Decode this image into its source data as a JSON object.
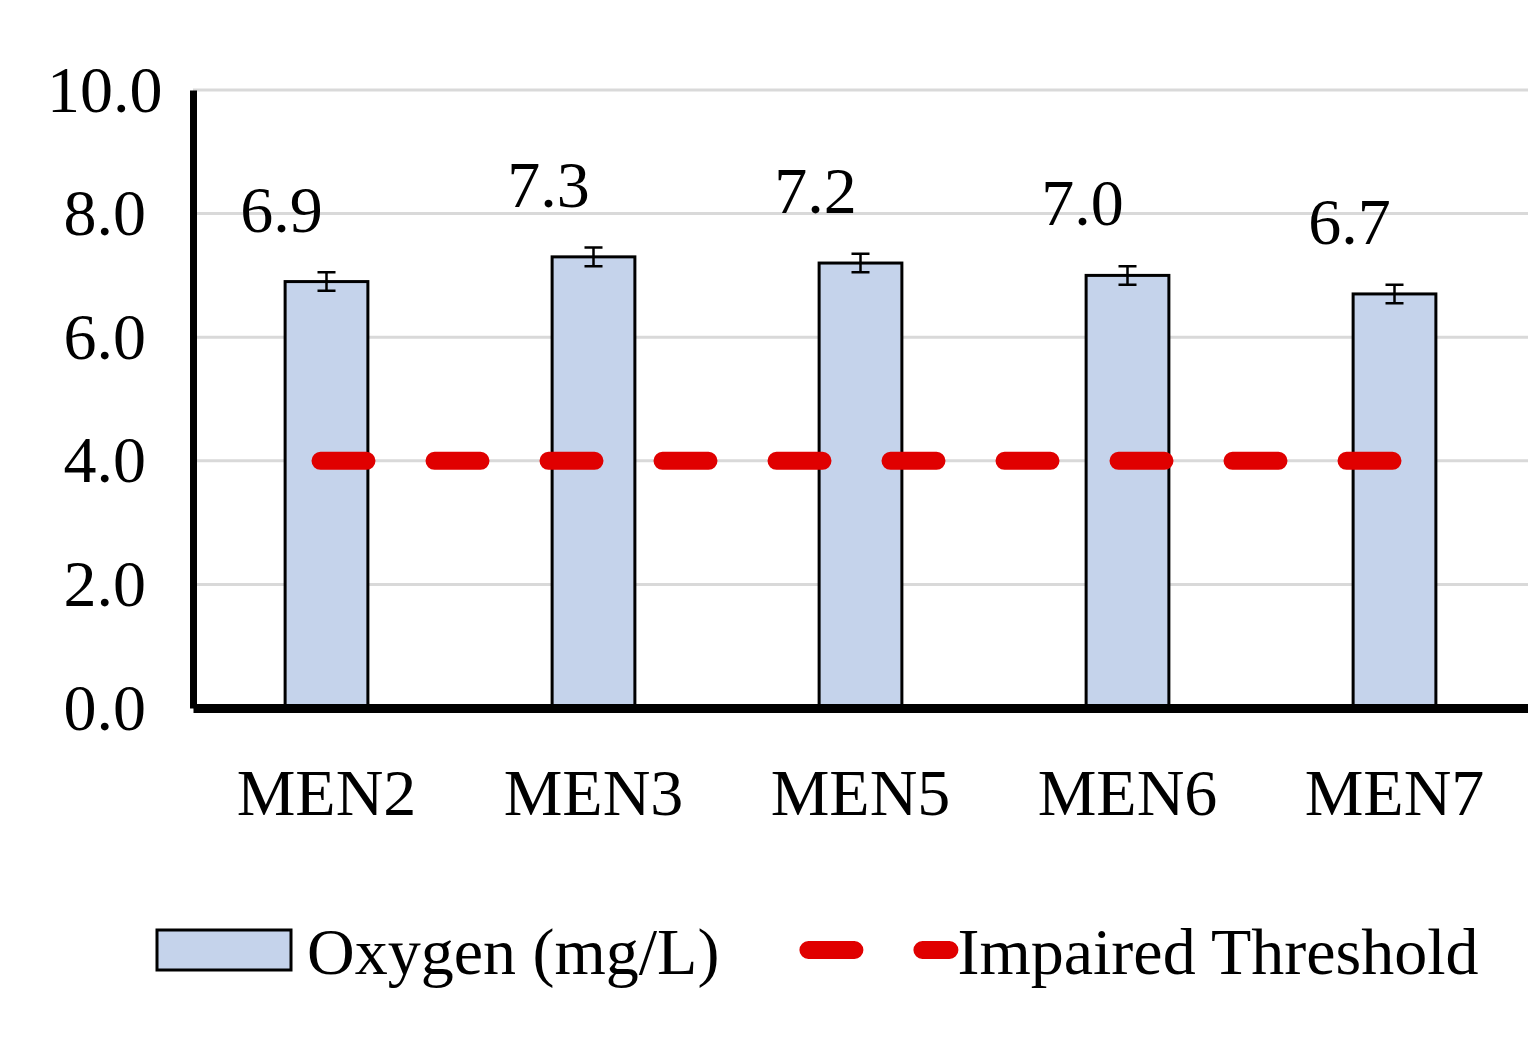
{
  "chart_data": {
    "type": "bar",
    "categories": [
      "MEN2",
      "MEN3",
      "MEN5",
      "MEN6",
      "MEN7"
    ],
    "series": [
      {
        "name": "Oxygen (mg/L)",
        "color": "#c5d3eb",
        "values": [
          6.9,
          7.3,
          7.2,
          7.0,
          6.7
        ],
        "errors": [
          0.15,
          0.15,
          0.15,
          0.15,
          0.15
        ],
        "value_labels": [
          "6.9",
          "7.3",
          "7.2",
          "7.0",
          "6.7"
        ]
      }
    ],
    "ylim": [
      0,
      10
    ],
    "yticks": [
      {
        "value": 0,
        "label": "0.0"
      },
      {
        "value": 2,
        "label": "2.0"
      },
      {
        "value": 4,
        "label": "4.0"
      },
      {
        "value": 6,
        "label": "6.0"
      },
      {
        "value": 8,
        "label": "8.0"
      },
      {
        "value": 10,
        "label": "10.0"
      }
    ],
    "grid": "y",
    "legend": "bottom",
    "ref_lines": [
      {
        "axis": "y",
        "value": 4,
        "label": "Impaired Threshold",
        "color": "#e00000",
        "line_style": "dashed"
      }
    ]
  }
}
